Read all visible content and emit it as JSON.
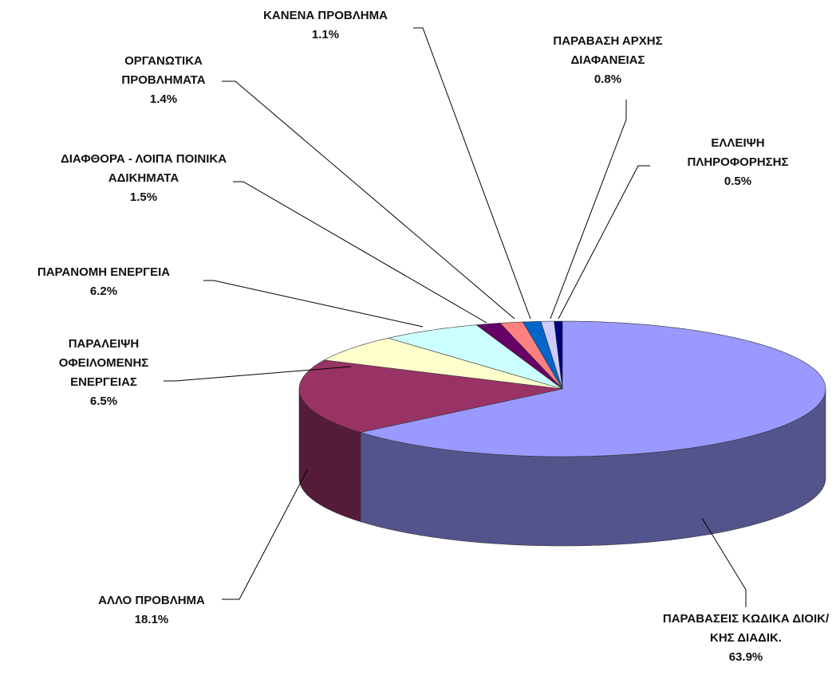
{
  "chart_data": {
    "type": "pie",
    "categories": [
      "ΠΑΡΑΒΑΣΕΙΣ ΚΩΔΙΚΑ ΔΙΟΙΚ/ΚΗΣ ΔΙΑΔΙΚ.",
      "ΑΛΛΟ ΠΡΟΒΛΗΜΑ",
      "ΠΑΡΑΛΕΙΨΗ ΟΦΕΙΛΟΜΕΝΗΣ ΕΝΕΡΓΕΙΑΣ",
      "ΠΑΡΑΝΟΜΗ ΕΝΕΡΓΕΙΑ",
      "ΔΙΑΦΘΟΡΑ - ΛΟΙΠΑ ΠΟΙΝΙΚΑ ΑΔΙΚΗΜΑΤΑ",
      "ΟΡΓΑΝΩΤΙΚΑ ΠΡΟΒΛΗΜΑΤΑ",
      "ΚΑΝΕΝΑ ΠΡΟΒΛΗΜΑ",
      "ΠΑΡΑΒΑΣΗ ΑΡΧΗΣ ΔΙΑΦΑΝΕΙΑΣ",
      "ΕΛΛΕΙΨΗ ΠΛΗΡΟΦΟΡΗΣΗΣ"
    ],
    "values": [
      63.9,
      18.1,
      6.5,
      6.2,
      1.5,
      1.4,
      1.1,
      0.8,
      0.5
    ],
    "value_labels": [
      "63.9%",
      "18.1%",
      "6.5%",
      "6.2%",
      "1.5%",
      "1.4%",
      "1.1%",
      "0.8%",
      "0.5%"
    ],
    "colors": [
      "#9999ff",
      "#993366",
      "#ffffcc",
      "#ccffff",
      "#660066",
      "#ff8080",
      "#0066cc",
      "#ccccff",
      "#000080"
    ]
  }
}
